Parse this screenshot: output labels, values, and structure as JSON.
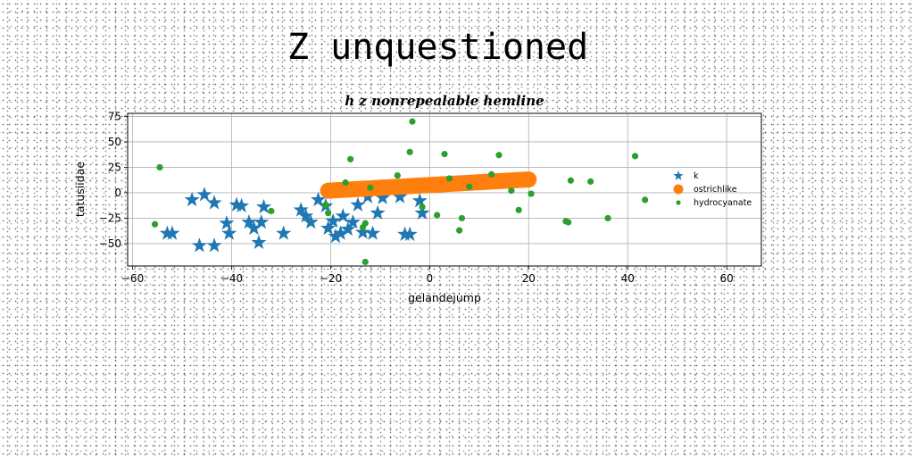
{
  "figure_title": "Z unquestioned",
  "chart_data": {
    "type": "scatter",
    "title": "h z nonrepealable hemline",
    "xlabel": "gelandejump",
    "ylabel": "tatusiidae",
    "xlim": [
      -61,
      67
    ],
    "ylim": [
      -72,
      78
    ],
    "xticks": [
      -60,
      -40,
      -20,
      0,
      20,
      40,
      60
    ],
    "yticks": [
      -50,
      -25,
      0,
      25,
      50,
      75
    ],
    "grid": true,
    "legend_position": "right",
    "series": [
      {
        "name": "k",
        "marker": "star",
        "color": "#1f77b4",
        "points": [
          [
            -48,
            -7
          ],
          [
            -45.5,
            -2
          ],
          [
            -43.5,
            -10
          ],
          [
            -53,
            -40
          ],
          [
            -52,
            -40
          ],
          [
            -46.5,
            -52
          ],
          [
            -43.5,
            -52
          ],
          [
            -41,
            -30
          ],
          [
            -40.5,
            -40
          ],
          [
            -39,
            -12
          ],
          [
            -38,
            -13
          ],
          [
            -36.5,
            -29
          ],
          [
            -35.5,
            -35
          ],
          [
            -34.5,
            -49
          ],
          [
            -34,
            -29
          ],
          [
            -33.5,
            -14
          ],
          [
            -29.5,
            -40
          ],
          [
            -26,
            -17
          ],
          [
            -25,
            -23
          ],
          [
            -24,
            -29
          ],
          [
            -22.5,
            -7
          ],
          [
            -21,
            -13
          ],
          [
            -20.5,
            -35
          ],
          [
            -19.5,
            -28
          ],
          [
            -19,
            -43
          ],
          [
            -18,
            -40
          ],
          [
            -17.5,
            -23
          ],
          [
            -16.5,
            -36
          ],
          [
            -15.5,
            -29
          ],
          [
            -14.5,
            -12
          ],
          [
            -13.5,
            -39
          ],
          [
            -12.5,
            -4
          ],
          [
            -11.5,
            -40
          ],
          [
            -10.5,
            -20
          ],
          [
            -9.5,
            -5
          ],
          [
            -6,
            -4
          ],
          [
            -5,
            -41
          ],
          [
            -4,
            -41
          ],
          [
            -2,
            -8
          ],
          [
            -1.5,
            -20
          ]
        ]
      },
      {
        "name": "ostrichlike",
        "marker": "circle",
        "color": "#ff7f0e",
        "line_segment": {
          "x_start": -20.5,
          "y_start": 2,
          "x_end": 20,
          "y_end": 13,
          "points": 80
        }
      },
      {
        "name": "hydrocyanate",
        "marker": "dot",
        "color": "#2ca02c",
        "points": [
          [
            -54.5,
            25
          ],
          [
            -55.5,
            -31
          ],
          [
            -32,
            -18
          ],
          [
            -21,
            -12
          ],
          [
            -20.5,
            -20
          ],
          [
            -16,
            33
          ],
          [
            -17,
            10
          ],
          [
            -13.5,
            -34
          ],
          [
            -13,
            -30
          ],
          [
            -13,
            -68
          ],
          [
            -12,
            5
          ],
          [
            -6.5,
            17
          ],
          [
            -4,
            40
          ],
          [
            -3.5,
            70
          ],
          [
            -1.5,
            -14
          ],
          [
            1.5,
            -22
          ],
          [
            3,
            38
          ],
          [
            4,
            14
          ],
          [
            6,
            -37
          ],
          [
            6.5,
            -25
          ],
          [
            8,
            6
          ],
          [
            12.5,
            18
          ],
          [
            14,
            37
          ],
          [
            16.5,
            2
          ],
          [
            18,
            -17
          ],
          [
            20.5,
            -1
          ],
          [
            27.5,
            -28
          ],
          [
            28,
            -29
          ],
          [
            28.5,
            12
          ],
          [
            32.5,
            11
          ],
          [
            36,
            -25
          ],
          [
            41.5,
            36
          ],
          [
            43.5,
            -7
          ]
        ]
      }
    ]
  }
}
